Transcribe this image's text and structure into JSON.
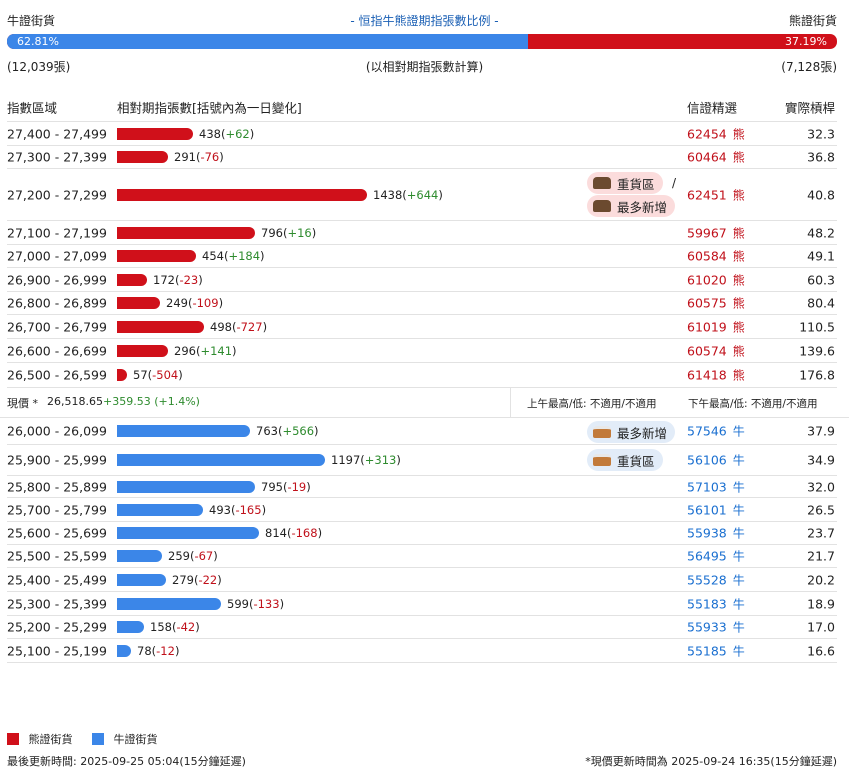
{
  "header": {
    "bull_label": "牛證街貨",
    "bear_label": "熊證街貨",
    "title": "- 恒指牛熊證期指張數比例 -",
    "bull_pct_text": "62.81%",
    "bear_pct_text": "37.19%",
    "bull_fraction": 0.6281,
    "bull_count": "(12,039張)",
    "bear_count": "(7,128張)",
    "note": "(以相對期指張數計算)"
  },
  "columns": {
    "range": "指數區域",
    "contracts": "相對期指張數[括號內為一日變化]",
    "ref_price": "信證精選",
    "gearing": "實際槓桿"
  },
  "colors": {
    "bear": "#d0101a",
    "bull": "#3b86e8",
    "positive": "#2e8b2e",
    "negative": "#c0101a"
  },
  "chart_data": {
    "type": "bar",
    "orientation": "horizontal",
    "bear_rows": [
      {
        "range": "27,400 - 27,499",
        "value": 438,
        "change": "+62",
        "price": "62454",
        "unit": "熊",
        "gearing": "32.3"
      },
      {
        "range": "27,300 - 27,399",
        "value": 291,
        "change": "-76",
        "price": "60464",
        "unit": "熊",
        "gearing": "36.8"
      },
      {
        "range": "27,200 - 27,299",
        "value": 1438,
        "change": "+644",
        "price": "62451",
        "unit": "熊",
        "gearing": "40.8"
      },
      {
        "range": "27,100 - 27,199",
        "value": 796,
        "change": "+16",
        "price": "59967",
        "unit": "熊",
        "gearing": "48.2"
      },
      {
        "range": "27,000 - 27,099",
        "value": 454,
        "change": "+184",
        "price": "60584",
        "unit": "熊",
        "gearing": "49.1"
      },
      {
        "range": "26,900 - 26,999",
        "value": 172,
        "change": "-23",
        "price": "61020",
        "unit": "熊",
        "gearing": "60.3"
      },
      {
        "range": "26,800 - 26,899",
        "value": 249,
        "change": "-109",
        "price": "60575",
        "unit": "熊",
        "gearing": "80.4"
      },
      {
        "range": "26,700 - 26,799",
        "value": 498,
        "change": "-727",
        "price": "61019",
        "unit": "熊",
        "gearing": "110.5"
      },
      {
        "range": "26,600 - 26,699",
        "value": 296,
        "change": "+141",
        "price": "60574",
        "unit": "熊",
        "gearing": "139.6"
      },
      {
        "range": "26,500 - 26,599",
        "value": 57,
        "change": "-504",
        "price": "61418",
        "unit": "熊",
        "gearing": "176.8"
      }
    ],
    "bull_rows": [
      {
        "range": "26,000 - 26,099",
        "value": 763,
        "change": "+566",
        "price": "57546",
        "unit": "牛",
        "gearing": "37.9"
      },
      {
        "range": "25,900 - 25,999",
        "value": 1197,
        "change": "+313",
        "price": "56106",
        "unit": "牛",
        "gearing": "34.9"
      },
      {
        "range": "25,800 - 25,899",
        "value": 795,
        "change": "-19",
        "price": "57103",
        "unit": "牛",
        "gearing": "32.0"
      },
      {
        "range": "25,700 - 25,799",
        "value": 493,
        "change": "-165",
        "price": "56101",
        "unit": "牛",
        "gearing": "26.5"
      },
      {
        "range": "25,600 - 25,699",
        "value": 814,
        "change": "-168",
        "price": "55938",
        "unit": "牛",
        "gearing": "23.7"
      },
      {
        "range": "25,500 - 25,599",
        "value": 259,
        "change": "-67",
        "price": "56495",
        "unit": "牛",
        "gearing": "21.7"
      },
      {
        "range": "25,400 - 25,499",
        "value": 279,
        "change": "-22",
        "price": "55528",
        "unit": "牛",
        "gearing": "20.2"
      },
      {
        "range": "25,300 - 25,399",
        "value": 599,
        "change": "-133",
        "price": "55183",
        "unit": "牛",
        "gearing": "18.9"
      },
      {
        "range": "25,200 - 25,299",
        "value": 158,
        "change": "-42",
        "price": "55933",
        "unit": "牛",
        "gearing": "17.0"
      },
      {
        "range": "25,100 - 25,199",
        "value": 78,
        "change": "-12",
        "price": "55185",
        "unit": "牛",
        "gearing": "16.6"
      }
    ],
    "xlim": [
      0,
      1438
    ]
  },
  "badges": {
    "bear_heavy": "重貨區",
    "bear_sep": "/",
    "bear_most_new": "最多新增",
    "bull_most_new": "最多新增",
    "bull_heavy": "重貨區"
  },
  "spot": {
    "label": "現價 *",
    "price": "26,518.65",
    "change": "+359.53 (+1.4%)",
    "am": "上午最高/低: 不適用/不適用",
    "pm": "下午最高/低: 不適用/不適用"
  },
  "legend": {
    "bear": "熊證街貨",
    "bull": "牛證街貨"
  },
  "footer": {
    "updated": "最後更新時間: 2025-09-25 05:04(15分鐘延遲)",
    "spot_updated": "*現價更新時間為 2025-09-24 16:35(15分鐘延遲)"
  }
}
